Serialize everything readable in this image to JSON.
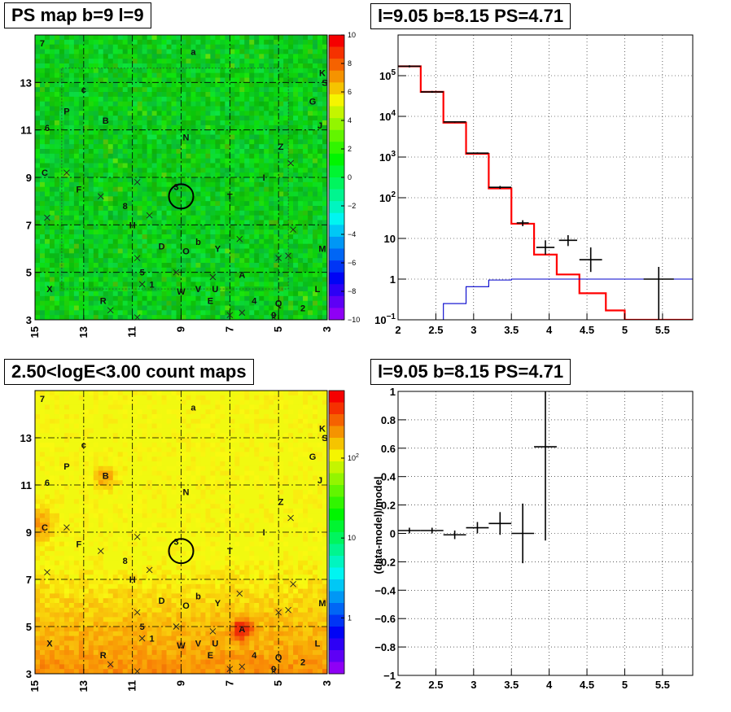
{
  "titles": {
    "ps_map": "PS map b=9 l=9",
    "spectrum": "l=9.05 b=8.15 PS=4.71",
    "count_map": "2.50<logE<3.00 count maps",
    "residual": "l=9.05 b=8.15 PS=4.71"
  },
  "chart_data": [
    {
      "type": "heatmap",
      "name": "ps-map",
      "title": "PS map b=9 l=9",
      "x_ticks": [
        "15",
        "13",
        "11",
        "9",
        "7",
        "5",
        "3"
      ],
      "x_tick_values": [
        15,
        13,
        11,
        9,
        7,
        5,
        3
      ],
      "y_ticks": [
        "3",
        "5",
        "7",
        "9",
        "11",
        "13"
      ],
      "y_tick_values": [
        3,
        5,
        7,
        9,
        11,
        13
      ],
      "xlim": [
        15,
        3
      ],
      "ylim": [
        3,
        15
      ],
      "colorbar_ticks": [
        "10",
        "8",
        "6",
        "4",
        "2",
        "0",
        "−2",
        "−4",
        "−6",
        "−8",
        "−10"
      ],
      "colorbar_values": [
        10,
        8,
        6,
        4,
        2,
        0,
        -2,
        -4,
        -6,
        -8,
        -10
      ],
      "source_labels": [
        {
          "t": "7",
          "x": 14.7,
          "y": 14.65
        },
        {
          "t": "a",
          "x": 8.5,
          "y": 14.3
        },
        {
          "t": "K",
          "x": 3.2,
          "y": 13.4
        },
        {
          "t": "S",
          "x": 3.1,
          "y": 13.0
        },
        {
          "t": "c",
          "x": 13.0,
          "y": 12.7
        },
        {
          "t": "G",
          "x": 3.6,
          "y": 12.2
        },
        {
          "t": "P",
          "x": 13.7,
          "y": 11.8
        },
        {
          "t": "B",
          "x": 12.1,
          "y": 11.4
        },
        {
          "t": "6",
          "x": 14.5,
          "y": 11.1
        },
        {
          "t": "J",
          "x": 3.3,
          "y": 11.2
        },
        {
          "t": "N",
          "x": 8.8,
          "y": 10.7
        },
        {
          "t": "Z",
          "x": 4.9,
          "y": 10.3
        },
        {
          "t": "C",
          "x": 14.6,
          "y": 9.2
        },
        {
          "t": "I",
          "x": 5.6,
          "y": 9.0
        },
        {
          "t": "F",
          "x": 13.2,
          "y": 8.5
        },
        {
          "t": "3",
          "x": 9.2,
          "y": 8.6
        },
        {
          "t": "T",
          "x": 7.0,
          "y": 8.2
        },
        {
          "t": "8",
          "x": 11.3,
          "y": 7.8
        },
        {
          "t": "H",
          "x": 11.0,
          "y": 7.0
        },
        {
          "t": "b",
          "x": 8.3,
          "y": 6.3
        },
        {
          "t": "D",
          "x": 9.8,
          "y": 6.1
        },
        {
          "t": "O",
          "x": 8.8,
          "y": 5.9
        },
        {
          "t": "Y",
          "x": 7.5,
          "y": 6.0
        },
        {
          "t": "M",
          "x": 3.2,
          "y": 6.0
        },
        {
          "t": "5",
          "x": 10.6,
          "y": 5.0
        },
        {
          "t": "A",
          "x": 6.5,
          "y": 4.9
        },
        {
          "t": "1",
          "x": 10.2,
          "y": 4.5
        },
        {
          "t": "X",
          "x": 14.4,
          "y": 4.3
        },
        {
          "t": "L",
          "x": 3.4,
          "y": 4.3
        },
        {
          "t": "W",
          "x": 9.0,
          "y": 4.2
        },
        {
          "t": "V",
          "x": 8.3,
          "y": 4.3
        },
        {
          "t": "U",
          "x": 7.6,
          "y": 4.3
        },
        {
          "t": "R",
          "x": 12.2,
          "y": 3.8
        },
        {
          "t": "E",
          "x": 7.8,
          "y": 3.8
        },
        {
          "t": "4",
          "x": 6.0,
          "y": 3.8
        },
        {
          "t": "Q",
          "x": 5.0,
          "y": 3.7
        },
        {
          "t": "2",
          "x": 4.0,
          "y": 3.5
        },
        {
          "t": "9",
          "x": 5.2,
          "y": 3.2
        }
      ]
    },
    {
      "type": "line",
      "name": "spectrum",
      "title": "l=9.05 b=8.15 PS=4.71",
      "xlim": [
        2,
        5.9
      ],
      "ylim": [
        0.1,
        1000000
      ],
      "yscale": "log",
      "grid": true,
      "x_ticks": [
        "2",
        "2.5",
        "3",
        "3.5",
        "4",
        "4.5",
        "5",
        "5.5"
      ],
      "x_tick_values": [
        2,
        2.5,
        3,
        3.5,
        4,
        4.5,
        5,
        5.5
      ],
      "y_ticks": [
        {
          "b": "10",
          "e": "−1",
          "v": 0.1
        },
        {
          "b": "1",
          "e": "",
          "v": 1
        },
        {
          "b": "10",
          "e": "",
          "v": 10
        },
        {
          "b": "10",
          "e": "2",
          "v": 100
        },
        {
          "b": "10",
          "e": "3",
          "v": 1000
        },
        {
          "b": "10",
          "e": "4",
          "v": 10000
        },
        {
          "b": "10",
          "e": "5",
          "v": 100000
        }
      ],
      "series": [
        {
          "color": "#ff0000",
          "bin_edges": [
            2.0,
            2.3,
            2.6,
            2.9,
            3.2,
            3.5,
            3.8,
            4.1,
            4.4,
            4.75,
            5.0,
            5.9
          ],
          "values": [
            170000,
            40000,
            7000,
            1200,
            170,
            23,
            4,
            1.3,
            0.45,
            0.17,
            0.1
          ]
        },
        {
          "color": "#0000cc",
          "bin_edges": [
            2.0,
            2.3,
            2.6,
            2.9,
            3.2,
            3.5,
            3.8,
            4.1,
            4.4,
            4.75,
            5.0,
            5.9
          ],
          "values": [
            0.05,
            0.08,
            0.25,
            0.65,
            0.95,
            1.0,
            1.0,
            1.0,
            1.0,
            1.0,
            1.0
          ]
        },
        {
          "color": "#000000",
          "type": "errorbar",
          "points": [
            {
              "x": 2.15,
              "y": 170000,
              "xerr": 0.15,
              "ylo": 160000,
              "yhi": 180000
            },
            {
              "x": 2.45,
              "y": 40000,
              "xerr": 0.15,
              "ylo": 38000,
              "yhi": 42000
            },
            {
              "x": 2.75,
              "y": 7300,
              "xerr": 0.15,
              "ylo": 7000,
              "yhi": 7600
            },
            {
              "x": 3.05,
              "y": 1250,
              "xerr": 0.15,
              "ylo": 1200,
              "yhi": 1300
            },
            {
              "x": 3.35,
              "y": 180,
              "xerr": 0.15,
              "ylo": 165,
              "yhi": 195
            },
            {
              "x": 3.65,
              "y": 24,
              "xerr": 0.08,
              "ylo": 20,
              "yhi": 28
            },
            {
              "x": 3.95,
              "y": 6,
              "xerr": 0.12,
              "ylo": 4,
              "yhi": 9
            },
            {
              "x": 4.25,
              "y": 9,
              "xerr": 0.12,
              "ylo": 6.5,
              "yhi": 12
            },
            {
              "x": 4.55,
              "y": 3,
              "xerr": 0.15,
              "ylo": 1.5,
              "yhi": 6
            },
            {
              "x": 5.45,
              "y": 1,
              "xerr": 0.2,
              "ylo": 0.1,
              "yhi": 2
            }
          ]
        }
      ]
    },
    {
      "type": "heatmap",
      "name": "count-map",
      "title": "2.50<logE<3.00 count maps",
      "x_ticks": [
        "15",
        "13",
        "11",
        "9",
        "7",
        "5",
        "3"
      ],
      "x_tick_values": [
        15,
        13,
        11,
        9,
        7,
        5,
        3
      ],
      "y_ticks": [
        "3",
        "5",
        "7",
        "9",
        "11",
        "13"
      ],
      "y_tick_values": [
        3,
        5,
        7,
        9,
        11,
        13
      ],
      "xlim": [
        15,
        3
      ],
      "ylim": [
        3,
        15
      ],
      "colorbar_scale": "log",
      "colorbar_ticks": [
        {
          "b": "10",
          "e": "2",
          "v": 100
        },
        {
          "b": "10",
          "e": "",
          "v": 10
        },
        {
          "b": "1",
          "e": "",
          "v": 1
        }
      ]
    },
    {
      "type": "scatter",
      "name": "residual",
      "title": "l=9.05 b=8.15 PS=4.71",
      "ylabel": "(data-model)/model",
      "xlim": [
        2,
        5.9
      ],
      "ylim": [
        -1,
        1
      ],
      "grid": true,
      "x_ticks": [
        "2",
        "2.5",
        "3",
        "3.5",
        "4",
        "4.5",
        "5",
        "5.5"
      ],
      "x_tick_values": [
        2,
        2.5,
        3,
        3.5,
        4,
        4.5,
        5,
        5.5
      ],
      "y_ticks": [
        "1",
        "0.8",
        "0.6",
        "0.4",
        "0.2",
        "0",
        "−0.2",
        "−0.4",
        "−0.6",
        "−0.8",
        "−1"
      ],
      "y_tick_values": [
        1,
        0.8,
        0.6,
        0.4,
        0.2,
        0,
        -0.2,
        -0.4,
        -0.6,
        -0.8,
        -1
      ],
      "points": [
        {
          "x": 2.15,
          "y": 0.02,
          "xerr": 0.15,
          "yerr": 0.02
        },
        {
          "x": 2.45,
          "y": 0.02,
          "xerr": 0.15,
          "yerr": 0.02
        },
        {
          "x": 2.75,
          "y": -0.01,
          "xerr": 0.15,
          "yerr": 0.03
        },
        {
          "x": 3.05,
          "y": 0.04,
          "xerr": 0.15,
          "yerr": 0.04
        },
        {
          "x": 3.35,
          "y": 0.07,
          "xerr": 0.15,
          "yerr": 0.08
        },
        {
          "x": 3.65,
          "y": 0.0,
          "xerr": 0.15,
          "yerr": 0.21
        },
        {
          "x": 3.95,
          "y": 0.61,
          "xerr": 0.15,
          "ylo": -0.05,
          "yhi": 1.0
        }
      ]
    }
  ]
}
